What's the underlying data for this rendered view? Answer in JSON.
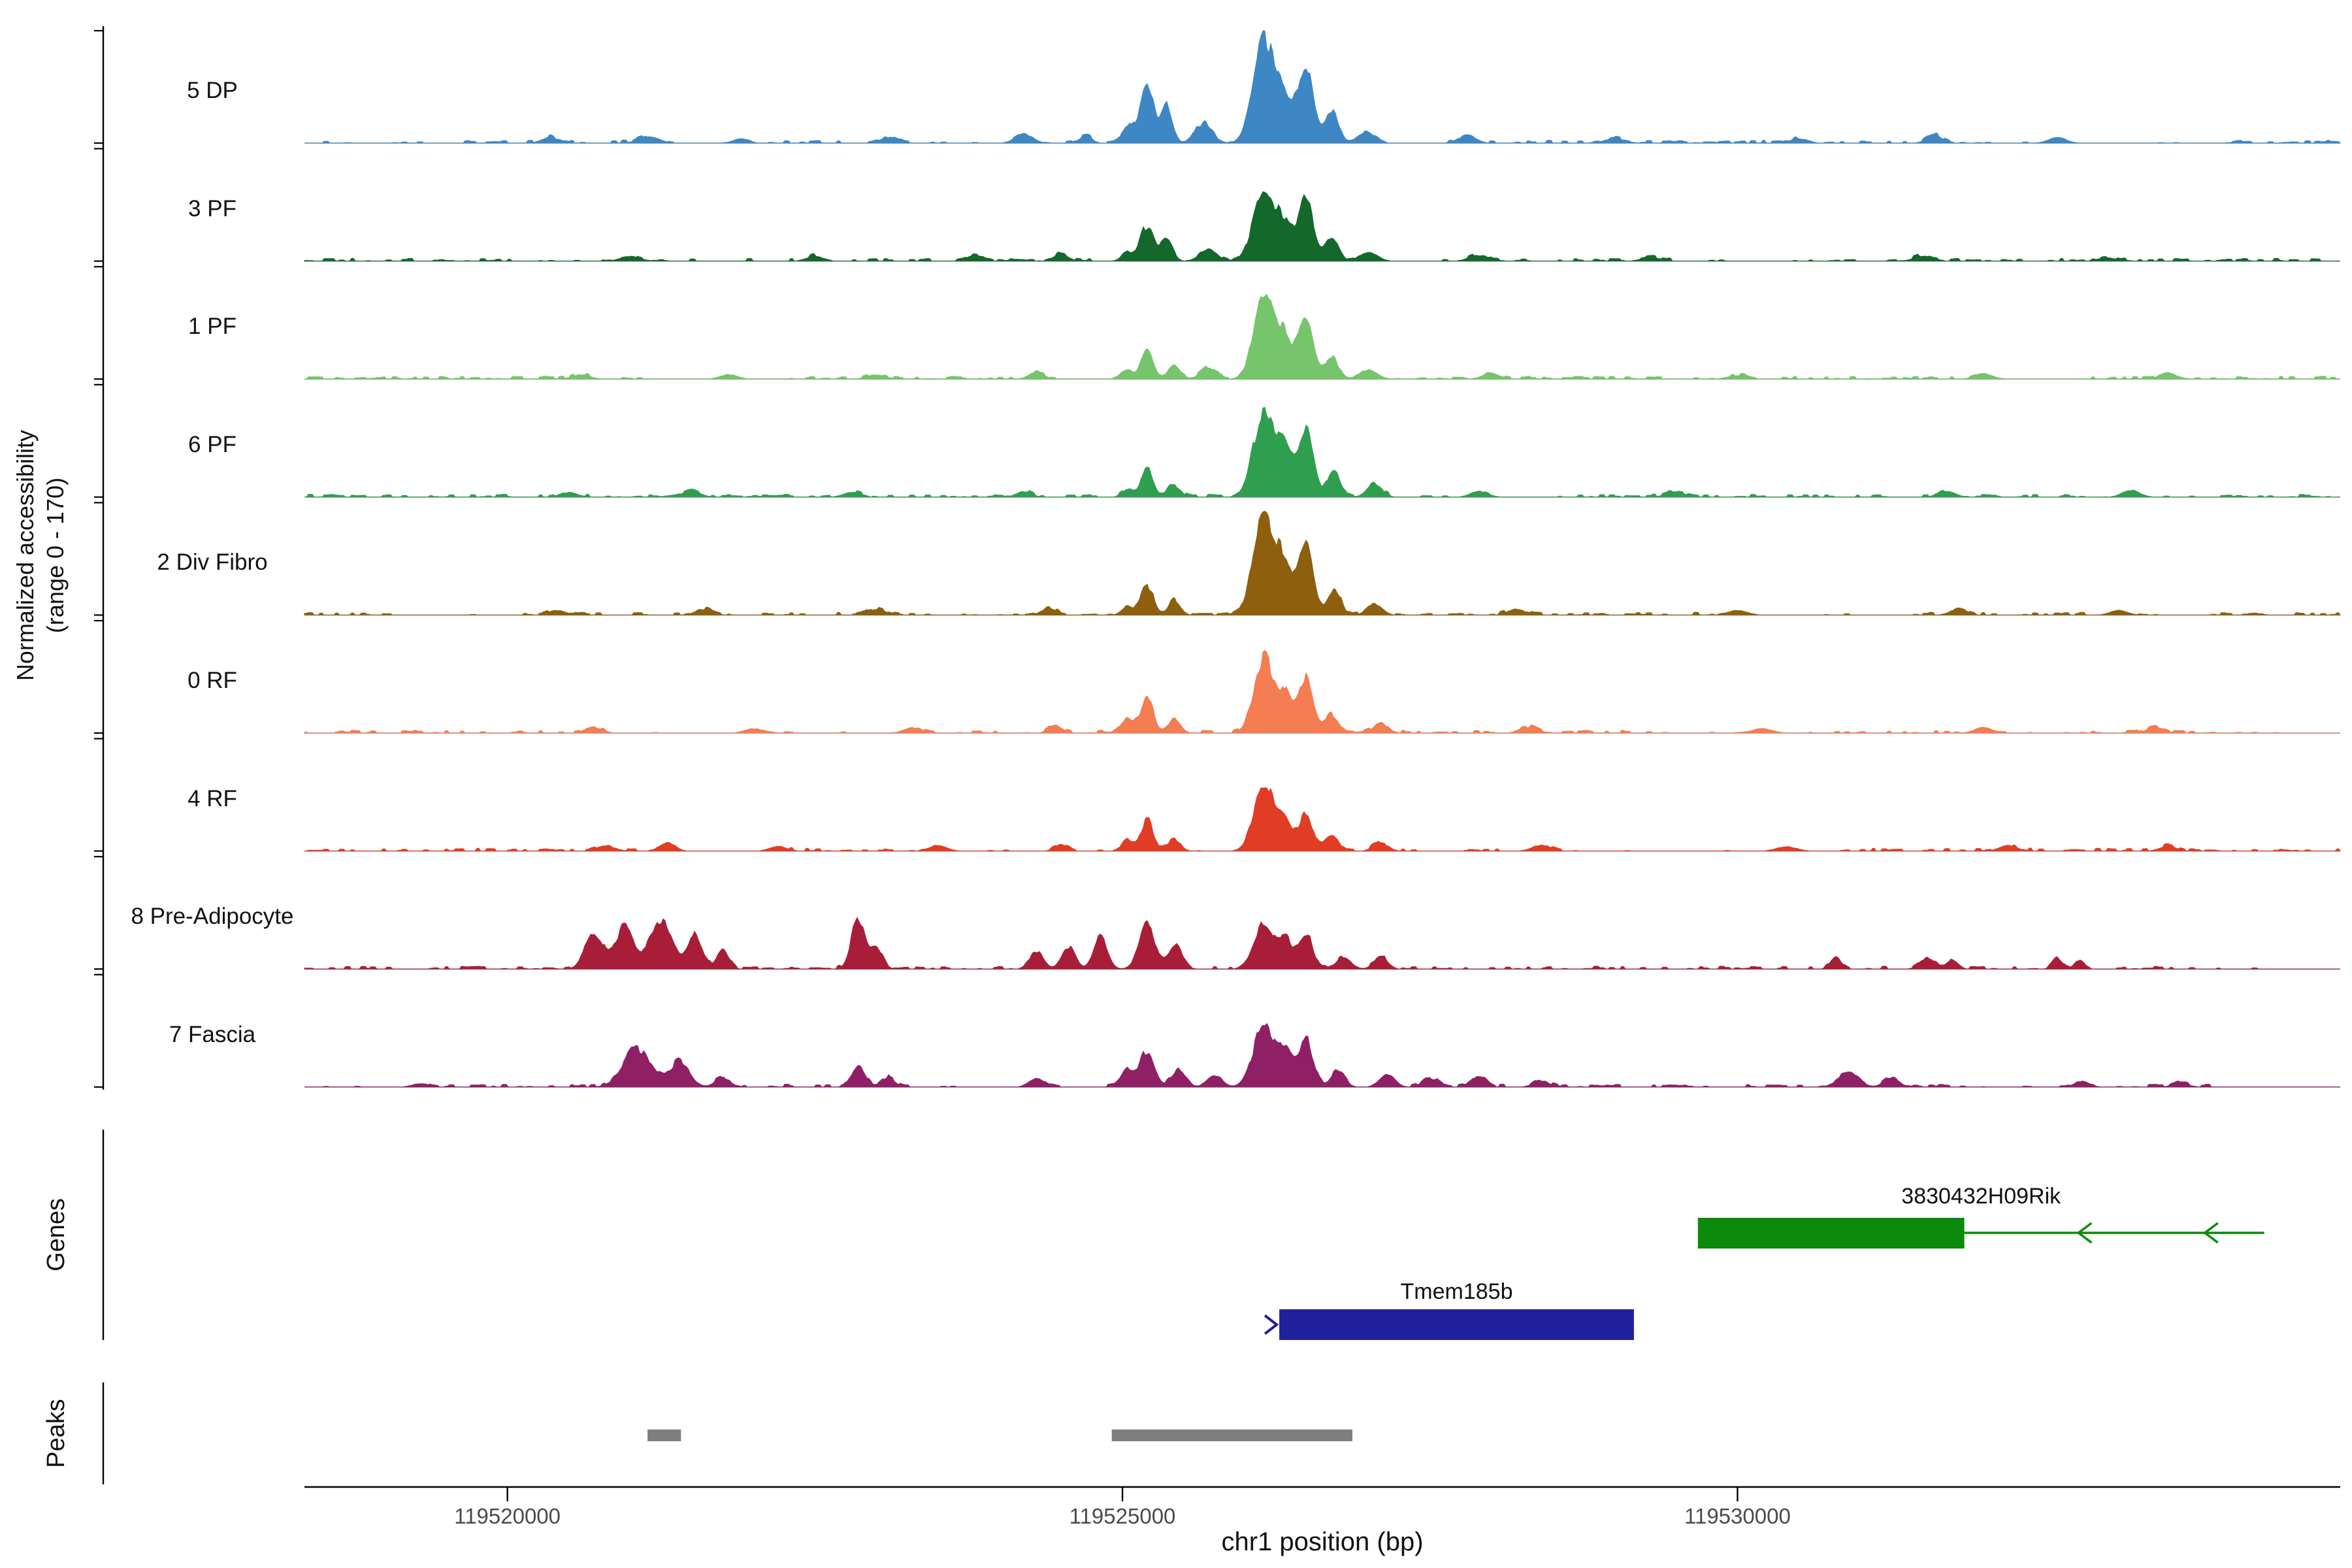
{
  "y_axis": {
    "label_line1": "Normalized accessibility",
    "label_line2": "(range 0 - 170)"
  },
  "x_axis": {
    "title": "chr1 position (bp)",
    "ticks": [
      {
        "pos": 119520000,
        "label": "119520000"
      },
      {
        "pos": 119525000,
        "label": "119525000"
      },
      {
        "pos": 119530000,
        "label": "119530000"
      }
    ]
  },
  "chart_data": {
    "type": "area",
    "region": {
      "chrom": "chr1",
      "start": 119518350,
      "end": 119534900
    },
    "ylim": [
      0,
      170
    ],
    "tracks": [
      {
        "label": "5 DP",
        "color": "#3d87c4",
        "peaks": [
          [
            119520350,
            0.05,
            70
          ],
          [
            119521150,
            0.06,
            80
          ],
          [
            119521900,
            0.04,
            60
          ],
          [
            119523100,
            0.05,
            70
          ],
          [
            119524200,
            0.08,
            70
          ],
          [
            119524700,
            0.06,
            50
          ],
          [
            119525040,
            0.15,
            45
          ],
          [
            119525200,
            0.52,
            55
          ],
          [
            119525360,
            0.34,
            45
          ],
          [
            119525660,
            0.17,
            70
          ],
          [
            119526150,
            0.95,
            85
          ],
          [
            119526320,
            0.35,
            60
          ],
          [
            119526490,
            0.72,
            60
          ],
          [
            119526700,
            0.28,
            55
          ],
          [
            119526980,
            0.1,
            70
          ],
          [
            119527800,
            0.07,
            70
          ],
          [
            119529000,
            0.04,
            80
          ],
          [
            119530500,
            0.04,
            70
          ],
          [
            119531600,
            0.07,
            60
          ],
          [
            119532600,
            0.05,
            70
          ]
        ]
      },
      {
        "label": "3 PF",
        "color": "#14682b",
        "peaks": [
          [
            119521000,
            0.04,
            80
          ],
          [
            119522500,
            0.04,
            70
          ],
          [
            119523800,
            0.05,
            70
          ],
          [
            119524500,
            0.06,
            60
          ],
          [
            119525040,
            0.08,
            45
          ],
          [
            119525200,
            0.3,
            55
          ],
          [
            119525360,
            0.18,
            45
          ],
          [
            119525700,
            0.1,
            70
          ],
          [
            119526150,
            0.62,
            85
          ],
          [
            119526320,
            0.3,
            60
          ],
          [
            119526490,
            0.55,
            60
          ],
          [
            119526700,
            0.22,
            55
          ],
          [
            119527000,
            0.08,
            70
          ],
          [
            119527900,
            0.05,
            70
          ],
          [
            119529300,
            0.03,
            80
          ],
          [
            119531500,
            0.04,
            70
          ],
          [
            119533000,
            0.03,
            70
          ]
        ]
      },
      {
        "label": "1 PF",
        "color": "#76c46c",
        "peaks": [
          [
            119520600,
            0.04,
            70
          ],
          [
            119521800,
            0.04,
            70
          ],
          [
            119523000,
            0.04,
            70
          ],
          [
            119524300,
            0.06,
            60
          ],
          [
            119525040,
            0.08,
            45
          ],
          [
            119525200,
            0.27,
            50
          ],
          [
            119525420,
            0.12,
            50
          ],
          [
            119525700,
            0.1,
            60
          ],
          [
            119526150,
            0.8,
            80
          ],
          [
            119526320,
            0.35,
            60
          ],
          [
            119526490,
            0.56,
            60
          ],
          [
            119526700,
            0.2,
            55
          ],
          [
            119527000,
            0.08,
            70
          ],
          [
            119528000,
            0.05,
            70
          ],
          [
            119530000,
            0.03,
            80
          ],
          [
            119532000,
            0.05,
            70
          ],
          [
            119533500,
            0.05,
            70
          ]
        ]
      },
      {
        "label": "6 PF",
        "color": "#2f9e4f",
        "peaks": [
          [
            119520500,
            0.04,
            70
          ],
          [
            119521500,
            0.05,
            70
          ],
          [
            119522800,
            0.04,
            70
          ],
          [
            119524200,
            0.05,
            60
          ],
          [
            119525040,
            0.07,
            45
          ],
          [
            119525200,
            0.24,
            50
          ],
          [
            119525420,
            0.1,
            50
          ],
          [
            119526150,
            0.76,
            85
          ],
          [
            119526320,
            0.4,
            60
          ],
          [
            119526490,
            0.62,
            60
          ],
          [
            119526720,
            0.22,
            55
          ],
          [
            119527050,
            0.12,
            60
          ],
          [
            119527900,
            0.05,
            70
          ],
          [
            119529500,
            0.04,
            80
          ],
          [
            119531700,
            0.05,
            70
          ],
          [
            119533200,
            0.06,
            70
          ]
        ]
      },
      {
        "label": "2 Div Fibro",
        "color": "#8d5f0e",
        "peaks": [
          [
            119520400,
            0.04,
            70
          ],
          [
            119521600,
            0.05,
            70
          ],
          [
            119523000,
            0.05,
            70
          ],
          [
            119524400,
            0.06,
            60
          ],
          [
            119525040,
            0.08,
            45
          ],
          [
            119525200,
            0.26,
            50
          ],
          [
            119525420,
            0.12,
            50
          ],
          [
            119526150,
            0.88,
            85
          ],
          [
            119526320,
            0.42,
            60
          ],
          [
            119526490,
            0.6,
            60
          ],
          [
            119526720,
            0.22,
            55
          ],
          [
            119527050,
            0.1,
            60
          ],
          [
            119528200,
            0.05,
            70
          ],
          [
            119530000,
            0.04,
            80
          ],
          [
            119531800,
            0.05,
            70
          ],
          [
            119533100,
            0.04,
            70
          ]
        ]
      },
      {
        "label": "0 RF",
        "color": "#f47d52",
        "peaks": [
          [
            119520700,
            0.05,
            70
          ],
          [
            119522000,
            0.04,
            70
          ],
          [
            119523300,
            0.05,
            70
          ],
          [
            119524450,
            0.07,
            50
          ],
          [
            119525040,
            0.14,
            45
          ],
          [
            119525200,
            0.32,
            50
          ],
          [
            119525420,
            0.12,
            50
          ],
          [
            119526150,
            0.66,
            80
          ],
          [
            119526320,
            0.3,
            55
          ],
          [
            119526490,
            0.48,
            60
          ],
          [
            119526700,
            0.16,
            55
          ],
          [
            119527100,
            0.08,
            60
          ],
          [
            119528300,
            0.05,
            70
          ],
          [
            119530200,
            0.04,
            80
          ],
          [
            119532000,
            0.05,
            70
          ],
          [
            119533400,
            0.05,
            70
          ]
        ]
      },
      {
        "label": "4 RF",
        "color": "#e13d25",
        "peaks": [
          [
            119520800,
            0.05,
            70
          ],
          [
            119521300,
            0.08,
            60
          ],
          [
            119522200,
            0.04,
            70
          ],
          [
            119523500,
            0.05,
            70
          ],
          [
            119524500,
            0.06,
            50
          ],
          [
            119525040,
            0.1,
            45
          ],
          [
            119525200,
            0.28,
            50
          ],
          [
            119525420,
            0.1,
            50
          ],
          [
            119526150,
            0.62,
            80
          ],
          [
            119526320,
            0.28,
            55
          ],
          [
            119526490,
            0.34,
            55
          ],
          [
            119526700,
            0.14,
            55
          ],
          [
            119527100,
            0.07,
            60
          ],
          [
            119528400,
            0.05,
            70
          ],
          [
            119530400,
            0.04,
            80
          ],
          [
            119532200,
            0.05,
            70
          ],
          [
            119533500,
            0.04,
            70
          ]
        ]
      },
      {
        "label": "8 Pre-Adipocyte",
        "color": "#a81e38",
        "peaks": [
          [
            119520700,
            0.3,
            70
          ],
          [
            119520950,
            0.36,
            80
          ],
          [
            119521250,
            0.42,
            90
          ],
          [
            119521520,
            0.3,
            60
          ],
          [
            119521750,
            0.16,
            50
          ],
          [
            119522850,
            0.46,
            55
          ],
          [
            119523000,
            0.18,
            50
          ],
          [
            119524300,
            0.16,
            55
          ],
          [
            119524560,
            0.2,
            55
          ],
          [
            119524820,
            0.3,
            55
          ],
          [
            119525200,
            0.4,
            65
          ],
          [
            119525430,
            0.22,
            55
          ],
          [
            119526150,
            0.42,
            80
          ],
          [
            119526330,
            0.25,
            55
          ],
          [
            119526490,
            0.3,
            55
          ],
          [
            119526800,
            0.1,
            60
          ],
          [
            119527100,
            0.1,
            55
          ],
          [
            119530800,
            0.1,
            45
          ],
          [
            119531550,
            0.1,
            60
          ],
          [
            119531750,
            0.08,
            45
          ],
          [
            119532600,
            0.1,
            40
          ],
          [
            119532780,
            0.08,
            40
          ]
        ]
      },
      {
        "label": "7 Fascia",
        "color": "#8f2066",
        "peaks": [
          [
            119519300,
            0.03,
            70
          ],
          [
            119521050,
            0.34,
            110
          ],
          [
            119521400,
            0.22,
            80
          ],
          [
            119521750,
            0.08,
            60
          ],
          [
            119522850,
            0.18,
            55
          ],
          [
            119523100,
            0.08,
            50
          ],
          [
            119524300,
            0.08,
            60
          ],
          [
            119525040,
            0.14,
            50
          ],
          [
            119525200,
            0.32,
            60
          ],
          [
            119525460,
            0.16,
            55
          ],
          [
            119525750,
            0.1,
            60
          ],
          [
            119526150,
            0.55,
            85
          ],
          [
            119526330,
            0.3,
            55
          ],
          [
            119526490,
            0.42,
            60
          ],
          [
            119526750,
            0.14,
            55
          ],
          [
            119527150,
            0.12,
            60
          ],
          [
            119527500,
            0.08,
            60
          ],
          [
            119527900,
            0.1,
            55
          ],
          [
            119528400,
            0.06,
            60
          ],
          [
            119530900,
            0.13,
            80
          ],
          [
            119531250,
            0.08,
            60
          ],
          [
            119532800,
            0.05,
            60
          ],
          [
            119533600,
            0.04,
            60
          ]
        ]
      }
    ]
  },
  "genes": {
    "section_label": "Genes",
    "items": [
      {
        "name": "3830432H09Rik",
        "color": "#0b8a0b",
        "strand": "-",
        "box_start_bp": 119529678,
        "box_end_bp": 119531844,
        "line_end_bp": 119534282,
        "arrow_positions_bp": [
          119532772,
          119533799
        ]
      },
      {
        "name": "Tmem185b",
        "color": "#20209c",
        "strand": "+",
        "box_start_bp": 119526275,
        "box_end_bp": 119529158
      }
    ]
  },
  "peaks": {
    "section_label": "Peaks",
    "color": "#7f7f7f",
    "items": [
      {
        "start_bp": 119521139,
        "end_bp": 119521411
      },
      {
        "start_bp": 119524913,
        "end_bp": 119526869
      }
    ]
  }
}
